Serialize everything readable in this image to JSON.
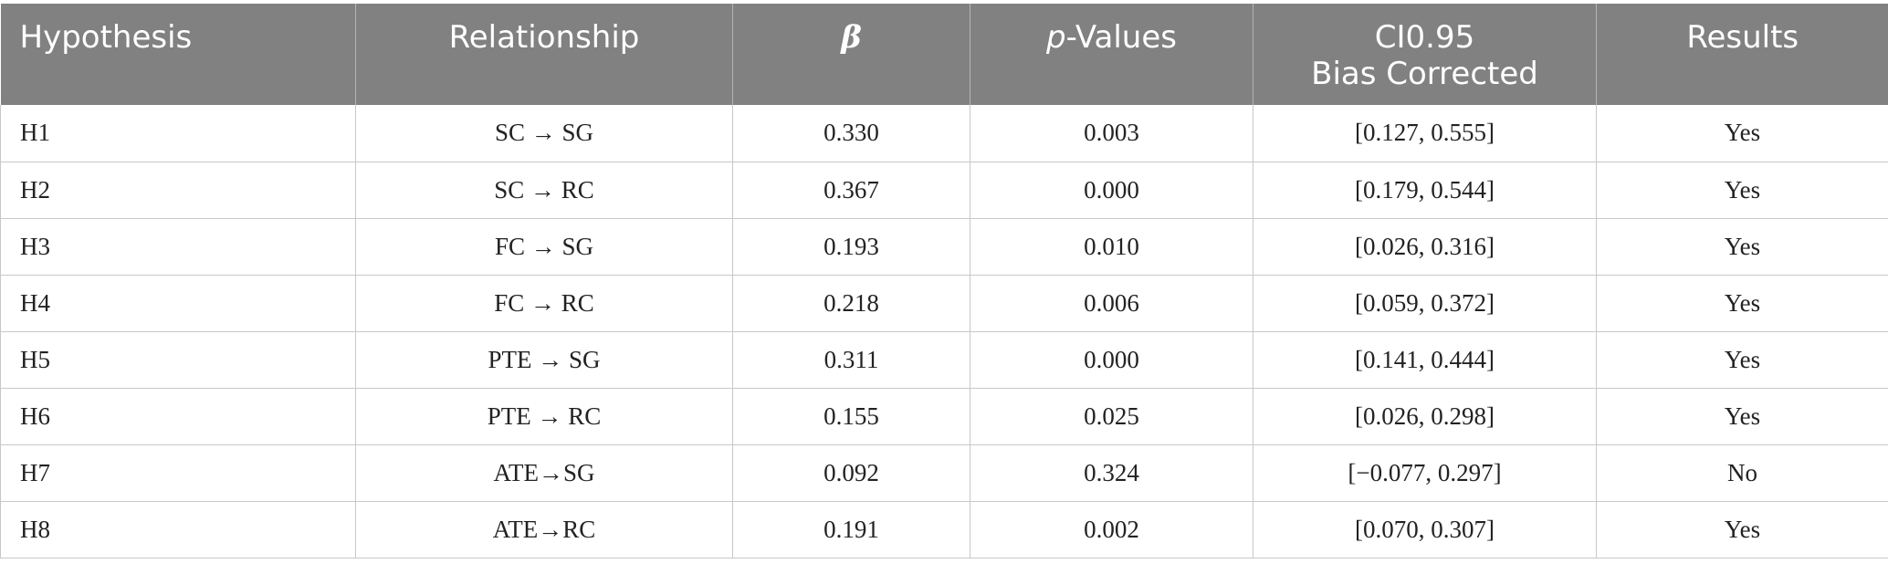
{
  "table": {
    "headers": {
      "hypothesis": "Hypothesis",
      "relationship": "Relationship",
      "beta": "β",
      "p_values_italic": "p",
      "p_values_rest": "-Values",
      "ci_line1": "CI0.95",
      "ci_line2": "Bias Corrected",
      "results": "Results"
    },
    "rows": [
      {
        "hypothesis": "H1",
        "relationship": "SC → SG",
        "beta": "0.330",
        "p_value": "0.003",
        "ci": "[0.127, 0.555]",
        "result": "Yes"
      },
      {
        "hypothesis": "H2",
        "relationship": "SC → RC",
        "beta": "0.367",
        "p_value": "0.000",
        "ci": "[0.179, 0.544]",
        "result": "Yes"
      },
      {
        "hypothesis": "H3",
        "relationship": "FC → SG",
        "beta": "0.193",
        "p_value": "0.010",
        "ci": "[0.026, 0.316]",
        "result": "Yes"
      },
      {
        "hypothesis": "H4",
        "relationship": "FC → RC",
        "beta": "0.218",
        "p_value": "0.006",
        "ci": "[0.059, 0.372]",
        "result": "Yes"
      },
      {
        "hypothesis": "H5",
        "relationship": "PTE → SG",
        "beta": "0.311",
        "p_value": "0.000",
        "ci": "[0.141, 0.444]",
        "result": "Yes"
      },
      {
        "hypothesis": "H6",
        "relationship": "PTE → RC",
        "beta": "0.155",
        "p_value": "0.025",
        "ci": "[0.026, 0.298]",
        "result": "Yes"
      },
      {
        "hypothesis": "H7",
        "relationship": "ATE→SG",
        "beta": "0.092",
        "p_value": "0.324",
        "ci": "[−0.077, 0.297]",
        "result": "No"
      },
      {
        "hypothesis": "H8",
        "relationship": "ATE→RC",
        "beta": "0.191",
        "p_value": "0.002",
        "ci": "[0.070, 0.307]",
        "result": "Yes"
      }
    ]
  }
}
